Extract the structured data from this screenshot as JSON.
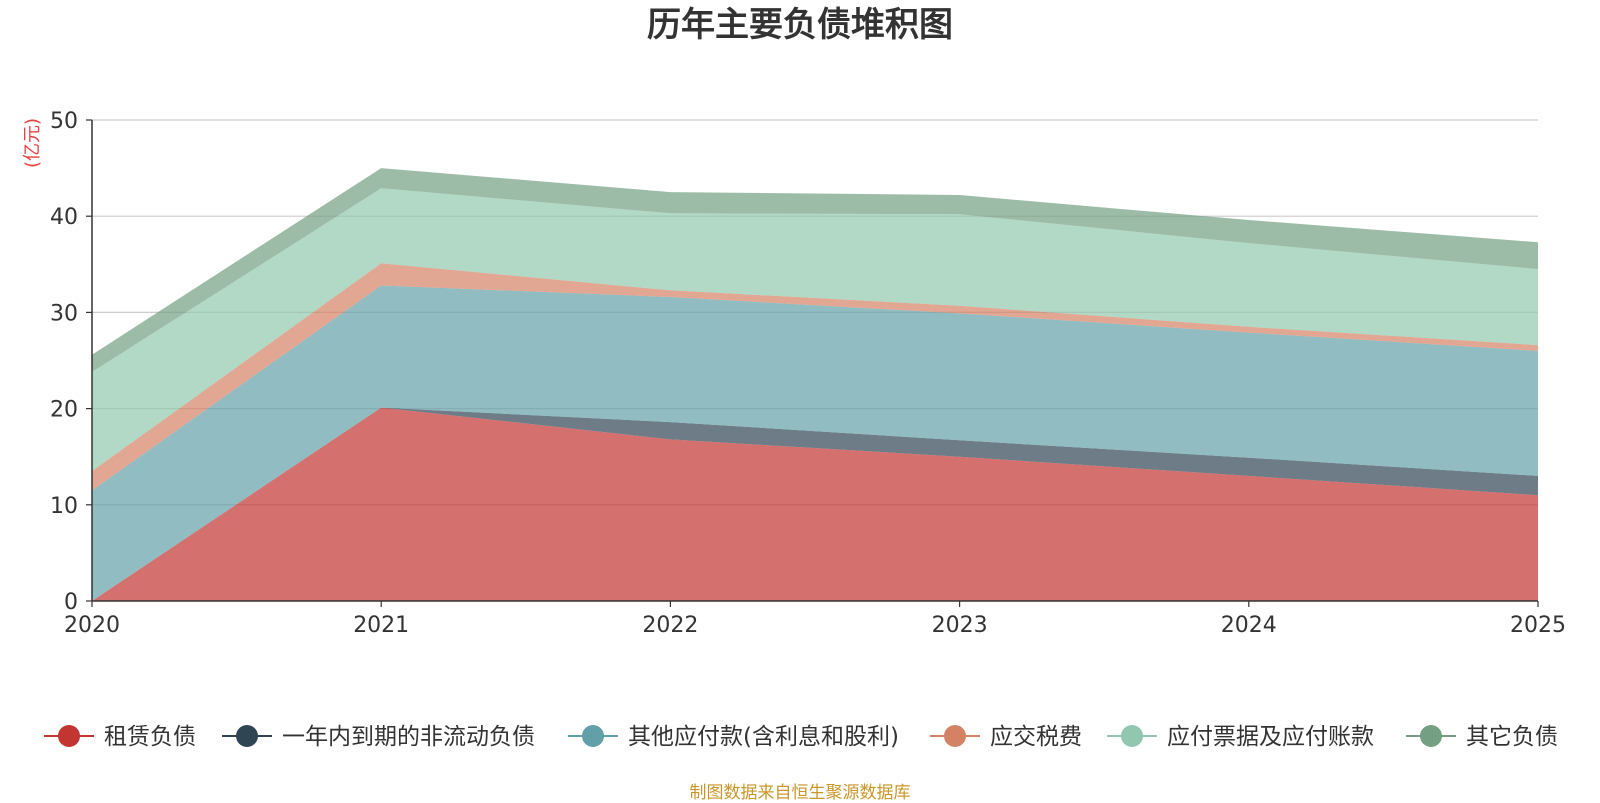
{
  "title": "历年主要负债堆积图",
  "source": "制图数据来自恒生聚源数据库",
  "chart_data": {
    "type": "area",
    "stacked": true,
    "title": "历年主要负债堆积图",
    "ylabel": "(亿元)",
    "xlabel": "",
    "x": [
      "2020",
      "2021",
      "2022",
      "2023",
      "2024",
      "2025"
    ],
    "yticks": [
      "0",
      "10",
      "20",
      "30",
      "40",
      "50"
    ],
    "ylim": [
      0,
      50
    ],
    "grid": true,
    "legend_position": "bottom",
    "series": [
      {
        "name": "租赁负债",
        "color": "#c23531",
        "values": [
          0,
          20.1,
          16.8,
          15.0,
          13.0,
          11.0
        ]
      },
      {
        "name": "一年内到期的非流动负债",
        "color": "#2f4554",
        "values": [
          0,
          0,
          1.8,
          1.7,
          1.9,
          2.0
        ]
      },
      {
        "name": "其他应付款(含利息和股利)",
        "color": "#61a0a8",
        "values": [
          11.5,
          12.7,
          13.0,
          13.2,
          13.0,
          13.0
        ]
      },
      {
        "name": "应交税费",
        "color": "#d48265",
        "values": [
          2.0,
          2.3,
          0.7,
          0.8,
          0.6,
          0.6
        ]
      },
      {
        "name": "应付票据及应付账款",
        "color": "#91c7ae",
        "values": [
          10.3,
          7.8,
          8.0,
          9.5,
          8.7,
          7.9
        ]
      },
      {
        "name": "其它负债",
        "color": "#749f83",
        "values": [
          1.8,
          2.1,
          2.2,
          2.0,
          2.4,
          2.8
        ]
      }
    ]
  }
}
